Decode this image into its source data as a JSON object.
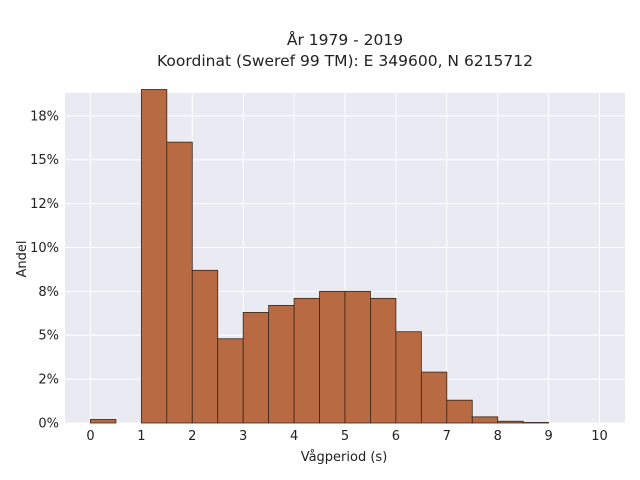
{
  "chart_data": {
    "type": "bar",
    "title_lines": [
      "År 1979 - 2019",
      "Koordinat (Sweref 99 TM): E 349600, N 6215712"
    ],
    "xlabel": "Vågperiod (s)",
    "ylabel": "Andel",
    "xlim": [
      -0.5,
      10.5
    ],
    "ylim": [
      0,
      18.8
    ],
    "x_ticks": [
      0,
      1,
      2,
      3,
      4,
      5,
      6,
      7,
      8,
      9,
      10
    ],
    "x_tick_labels": [
      "0",
      "1",
      "2",
      "3",
      "4",
      "5",
      "6",
      "7",
      "8",
      "9",
      "10"
    ],
    "y_ticks": [
      0,
      2.5,
      5,
      7.5,
      10,
      12.5,
      15,
      17.5
    ],
    "y_tick_labels": [
      "0%",
      "2%",
      "5%",
      "8%",
      "10%",
      "12%",
      "15%",
      "18%"
    ],
    "bin_width": 0.5,
    "bins": [
      {
        "x0": 0.0,
        "value": 0.2
      },
      {
        "x0": 0.5,
        "value": 0.0
      },
      {
        "x0": 1.0,
        "value": 19.0
      },
      {
        "x0": 1.5,
        "value": 16.0
      },
      {
        "x0": 2.0,
        "value": 8.7
      },
      {
        "x0": 2.5,
        "value": 4.8
      },
      {
        "x0": 3.0,
        "value": 6.3
      },
      {
        "x0": 3.5,
        "value": 6.7
      },
      {
        "x0": 4.0,
        "value": 7.1
      },
      {
        "x0": 4.5,
        "value": 7.5
      },
      {
        "x0": 5.0,
        "value": 7.5
      },
      {
        "x0": 5.5,
        "value": 7.1
      },
      {
        "x0": 6.0,
        "value": 5.2
      },
      {
        "x0": 6.5,
        "value": 2.9
      },
      {
        "x0": 7.0,
        "value": 1.3
      },
      {
        "x0": 7.5,
        "value": 0.35
      },
      {
        "x0": 8.0,
        "value": 0.1
      },
      {
        "x0": 8.5,
        "value": 0.03
      }
    ],
    "grid": true,
    "colors": {
      "bar_fill": "#b86a43",
      "bar_edge": "#3a2518",
      "plot_background": "#eaeaf2",
      "grid": "#ffffff"
    }
  }
}
